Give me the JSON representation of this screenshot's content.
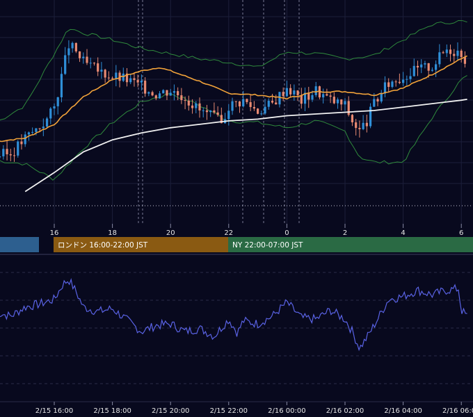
{
  "chart_data": [
    {
      "type": "candlestick",
      "panel": "price",
      "overlays": [
        "moving-average-orange",
        "moving-average-white",
        "bollinger-bands-green"
      ],
      "x_ticks": [
        "16",
        "18",
        "20",
        "22",
        "0",
        "2",
        "4",
        "6"
      ],
      "x_tick_hours": [
        16,
        18,
        20,
        22,
        24,
        26,
        28,
        30
      ],
      "grid": true,
      "colors": {
        "up": "#2f8fd8",
        "down": "#e88a72",
        "ma_fast": "#f2a33a",
        "ma_slow": "#f2f2f2",
        "bands": "#2f8a3c",
        "background": "#08091e"
      },
      "sessions": [
        {
          "label": "",
          "color": "#2d5f8f"
        },
        {
          "label": "ロンドン 16:00-22:00 JST",
          "color": "#8a5a12"
        },
        {
          "label": "NY 22:00-07:00 JST",
          "color": "#2a6a44"
        }
      ],
      "close_series": [
        [
          14.0,
          0.26
        ],
        [
          14.5,
          0.27
        ],
        [
          15.0,
          0.36
        ],
        [
          15.5,
          0.43
        ],
        [
          15.75,
          0.47
        ],
        [
          16.0,
          0.54
        ],
        [
          16.25,
          0.72
        ],
        [
          16.5,
          0.9
        ],
        [
          16.75,
          0.86
        ],
        [
          17.0,
          0.8
        ],
        [
          17.5,
          0.75
        ],
        [
          18.0,
          0.72
        ],
        [
          18.5,
          0.7
        ],
        [
          19.0,
          0.66
        ],
        [
          19.5,
          0.62
        ],
        [
          20.0,
          0.64
        ],
        [
          20.5,
          0.6
        ],
        [
          21.0,
          0.52
        ],
        [
          21.5,
          0.48
        ],
        [
          21.75,
          0.44
        ],
        [
          22.0,
          0.55
        ],
        [
          22.5,
          0.58
        ],
        [
          23.0,
          0.52
        ],
        [
          23.5,
          0.56
        ],
        [
          24.0,
          0.66
        ],
        [
          24.5,
          0.58
        ],
        [
          25.0,
          0.64
        ],
        [
          25.5,
          0.58
        ],
        [
          26.0,
          0.55
        ],
        [
          26.25,
          0.46
        ],
        [
          26.5,
          0.4
        ],
        [
          26.75,
          0.46
        ],
        [
          27.0,
          0.56
        ],
        [
          27.5,
          0.68
        ],
        [
          28.0,
          0.72
        ],
        [
          28.5,
          0.76
        ],
        [
          29.0,
          0.78
        ],
        [
          29.5,
          0.88
        ],
        [
          30.0,
          0.86
        ],
        [
          30.2,
          0.8
        ]
      ],
      "ma_slow": [
        [
          15.0,
          0.05
        ],
        [
          16.0,
          0.16
        ],
        [
          17.0,
          0.28
        ],
        [
          18.0,
          0.35
        ],
        [
          19.0,
          0.39
        ],
        [
          20.0,
          0.42
        ],
        [
          21.0,
          0.44
        ],
        [
          22.0,
          0.46
        ],
        [
          23.0,
          0.47
        ],
        [
          24.0,
          0.49
        ],
        [
          25.0,
          0.5
        ],
        [
          26.0,
          0.51
        ],
        [
          27.0,
          0.52
        ],
        [
          28.0,
          0.54
        ],
        [
          29.0,
          0.56
        ],
        [
          30.0,
          0.58
        ],
        [
          30.2,
          0.585
        ]
      ],
      "ma_fast": [
        [
          14.0,
          0.34
        ],
        [
          15.0,
          0.36
        ],
        [
          16.0,
          0.44
        ],
        [
          17.0,
          0.6
        ],
        [
          18.0,
          0.7
        ],
        [
          19.0,
          0.75
        ],
        [
          19.6,
          0.77
        ],
        [
          20.0,
          0.75
        ],
        [
          21.0,
          0.69
        ],
        [
          22.0,
          0.62
        ],
        [
          23.0,
          0.61
        ],
        [
          24.0,
          0.59
        ],
        [
          25.0,
          0.63
        ],
        [
          26.0,
          0.63
        ],
        [
          27.0,
          0.61
        ],
        [
          28.0,
          0.65
        ],
        [
          29.0,
          0.73
        ],
        [
          30.0,
          0.82
        ],
        [
          30.2,
          0.84
        ]
      ],
      "band_upper": [
        [
          14.0,
          0.45
        ],
        [
          15.0,
          0.55
        ],
        [
          16.0,
          0.85
        ],
        [
          16.5,
          1.0
        ],
        [
          17.0,
          0.97
        ],
        [
          18.0,
          0.93
        ],
        [
          19.0,
          0.88
        ],
        [
          20.0,
          0.85
        ],
        [
          21.0,
          0.82
        ],
        [
          22.0,
          0.8
        ],
        [
          23.0,
          0.77
        ],
        [
          24.0,
          0.86
        ],
        [
          25.0,
          0.85
        ],
        [
          26.0,
          0.82
        ],
        [
          27.0,
          0.84
        ],
        [
          28.0,
          0.93
        ],
        [
          29.0,
          1.02
        ],
        [
          30.0,
          1.04
        ],
        [
          30.2,
          1.03
        ]
      ],
      "band_lower": [
        [
          14.0,
          0.23
        ],
        [
          15.0,
          0.21
        ],
        [
          16.0,
          0.12
        ],
        [
          17.0,
          0.3
        ],
        [
          18.0,
          0.45
        ],
        [
          19.0,
          0.57
        ],
        [
          20.0,
          0.62
        ],
        [
          21.0,
          0.55
        ],
        [
          22.0,
          0.46
        ],
        [
          23.0,
          0.45
        ],
        [
          24.0,
          0.42
        ],
        [
          25.0,
          0.46
        ],
        [
          26.0,
          0.4
        ],
        [
          26.5,
          0.25
        ],
        [
          27.0,
          0.22
        ],
        [
          28.0,
          0.22
        ],
        [
          29.0,
          0.48
        ],
        [
          30.0,
          0.7
        ],
        [
          30.2,
          0.72
        ]
      ]
    },
    {
      "type": "line",
      "panel": "oscillator",
      "x_ticks": [
        "2/15 16:00",
        "2/15 18:00",
        "2/15 20:00",
        "2/15 22:00",
        "2/16 00:00",
        "2/16 02:00",
        "2/16 04:00",
        "2/16 06:00"
      ],
      "x_tick_hours": [
        16,
        18,
        20,
        22,
        24,
        26,
        28,
        30
      ],
      "grid": true,
      "colors": {
        "line": "#5a63e6"
      },
      "series": [
        [
          14.0,
          0.55
        ],
        [
          14.5,
          0.5
        ],
        [
          15.0,
          0.62
        ],
        [
          15.5,
          0.66
        ],
        [
          16.0,
          0.72
        ],
        [
          16.3,
          0.92
        ],
        [
          16.5,
          0.98
        ],
        [
          16.75,
          0.82
        ],
        [
          17.0,
          0.62
        ],
        [
          17.5,
          0.56
        ],
        [
          18.0,
          0.6
        ],
        [
          18.5,
          0.45
        ],
        [
          19.0,
          0.3
        ],
        [
          19.5,
          0.38
        ],
        [
          20.0,
          0.4
        ],
        [
          20.5,
          0.3
        ],
        [
          21.0,
          0.34
        ],
        [
          21.5,
          0.24
        ],
        [
          22.0,
          0.46
        ],
        [
          22.3,
          0.28
        ],
        [
          22.5,
          0.44
        ],
        [
          23.0,
          0.4
        ],
        [
          23.5,
          0.5
        ],
        [
          24.0,
          0.68
        ],
        [
          24.5,
          0.48
        ],
        [
          25.0,
          0.46
        ],
        [
          25.5,
          0.58
        ],
        [
          26.0,
          0.46
        ],
        [
          26.25,
          0.3
        ],
        [
          26.5,
          0.08
        ],
        [
          26.75,
          0.22
        ],
        [
          27.0,
          0.38
        ],
        [
          27.5,
          0.72
        ],
        [
          28.0,
          0.76
        ],
        [
          28.5,
          0.84
        ],
        [
          29.0,
          0.78
        ],
        [
          29.5,
          0.84
        ],
        [
          29.9,
          0.86
        ],
        [
          30.0,
          0.58
        ],
        [
          30.2,
          0.5
        ]
      ]
    }
  ]
}
